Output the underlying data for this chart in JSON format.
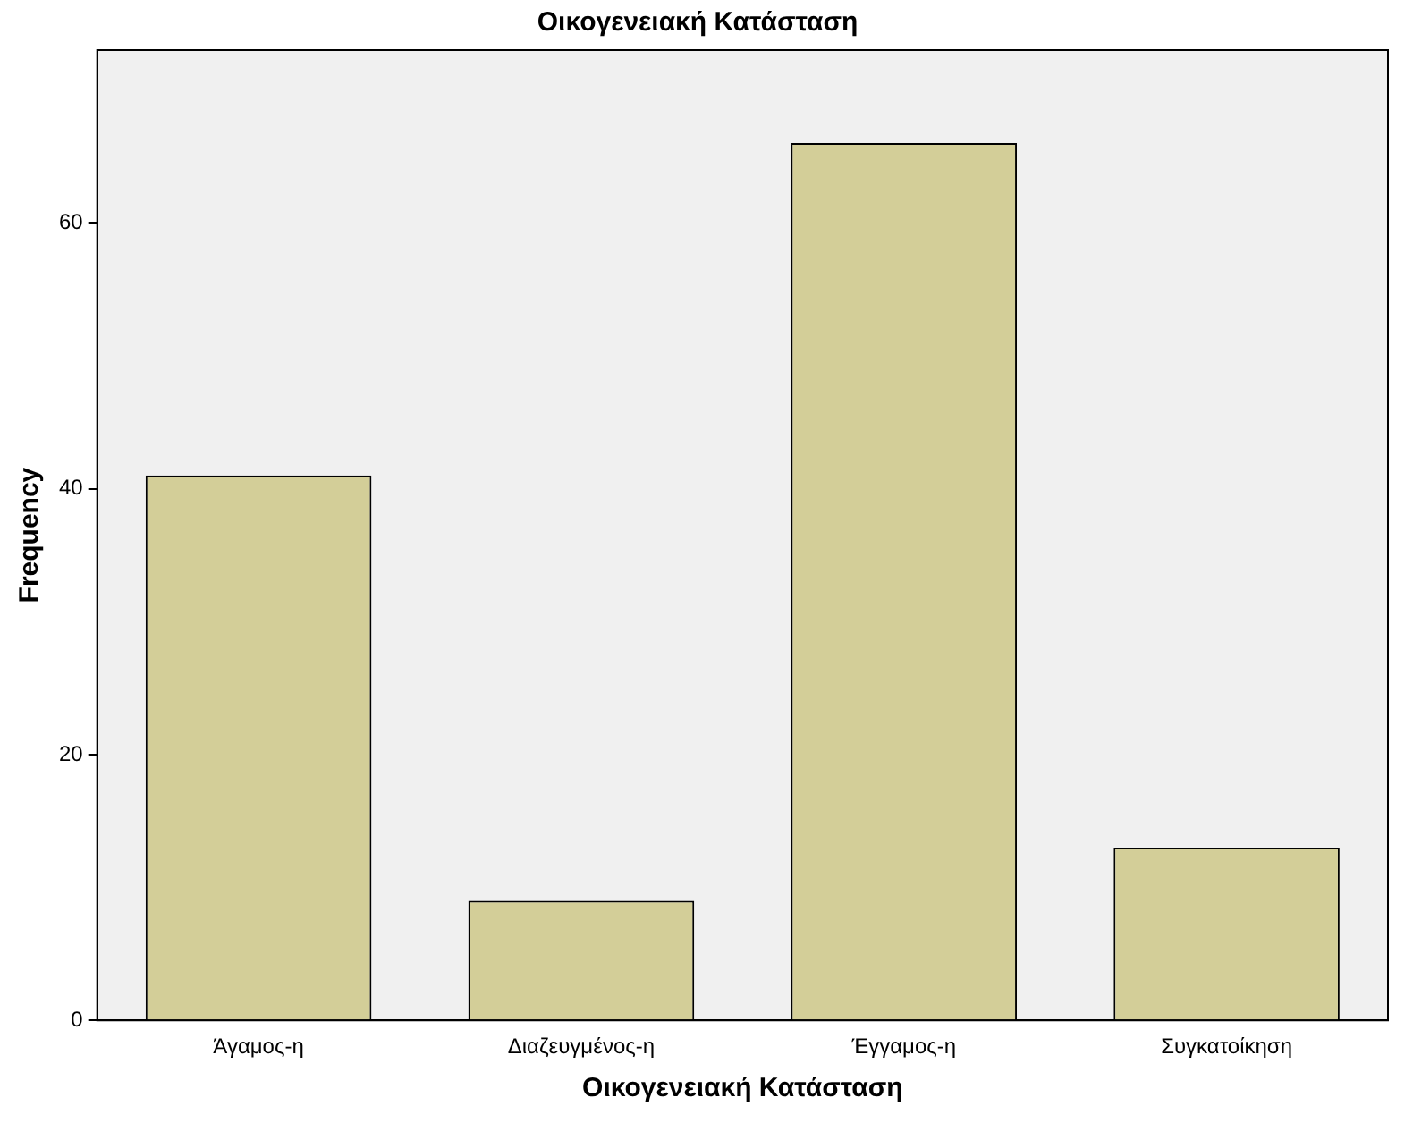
{
  "chart_data": {
    "type": "bar",
    "title": "Οικογενειακή Κατάσταση",
    "xlabel": "Οικογενειακή Κατάσταση",
    "ylabel": "Frequency",
    "categories": [
      "Άγαμος-η",
      "Διαζευγμένος-η",
      "Έγγαμος-η",
      "Συγκατοίκηση"
    ],
    "values": [
      41,
      9,
      66,
      13
    ],
    "color": "#d3ce98",
    "ylim": [
      0,
      73
    ],
    "yticks": [
      0,
      20,
      40,
      60
    ],
    "grid": false,
    "legend": false
  }
}
